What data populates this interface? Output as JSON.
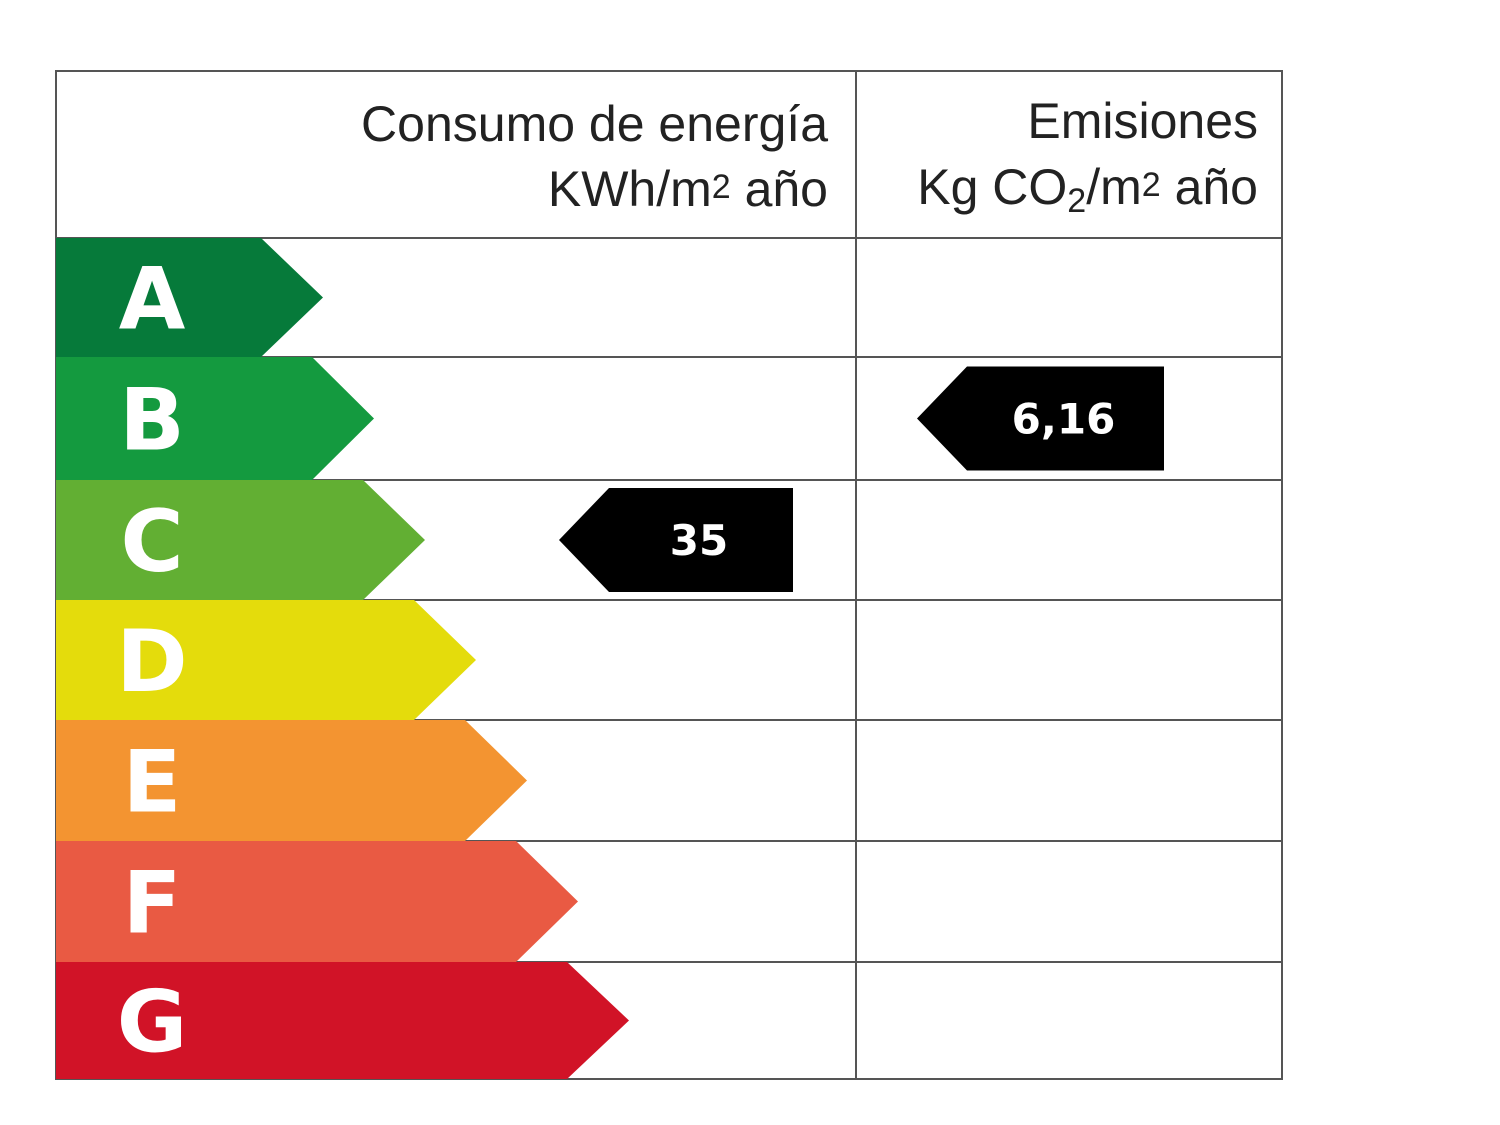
{
  "header": {
    "consumo_title": "Consumo de energía",
    "consumo_unit_pre": "KWh/m",
    "consumo_unit_sup": "2",
    "consumo_unit_post": " año",
    "emisiones_title": "Emisiones",
    "emisiones_unit_pre": "Kg CO",
    "emisiones_unit_sub": "2",
    "emisiones_unit_mid": "/m",
    "emisiones_unit_sup": "2",
    "emisiones_unit_post": " año"
  },
  "ratings": [
    {
      "letter": "A",
      "color": "#067a3a"
    },
    {
      "letter": "B",
      "color": "#149a3f"
    },
    {
      "letter": "C",
      "color": "#62af33"
    },
    {
      "letter": "D",
      "color": "#e4dc0c"
    },
    {
      "letter": "E",
      "color": "#f39431"
    },
    {
      "letter": "F",
      "color": "#e95a43"
    },
    {
      "letter": "G",
      "color": "#d11327"
    }
  ],
  "markers": {
    "consumo": {
      "value": "35",
      "class": "C",
      "color": "#000000"
    },
    "emisiones": {
      "value": "6,16",
      "class": "B",
      "color": "#000000"
    }
  }
}
